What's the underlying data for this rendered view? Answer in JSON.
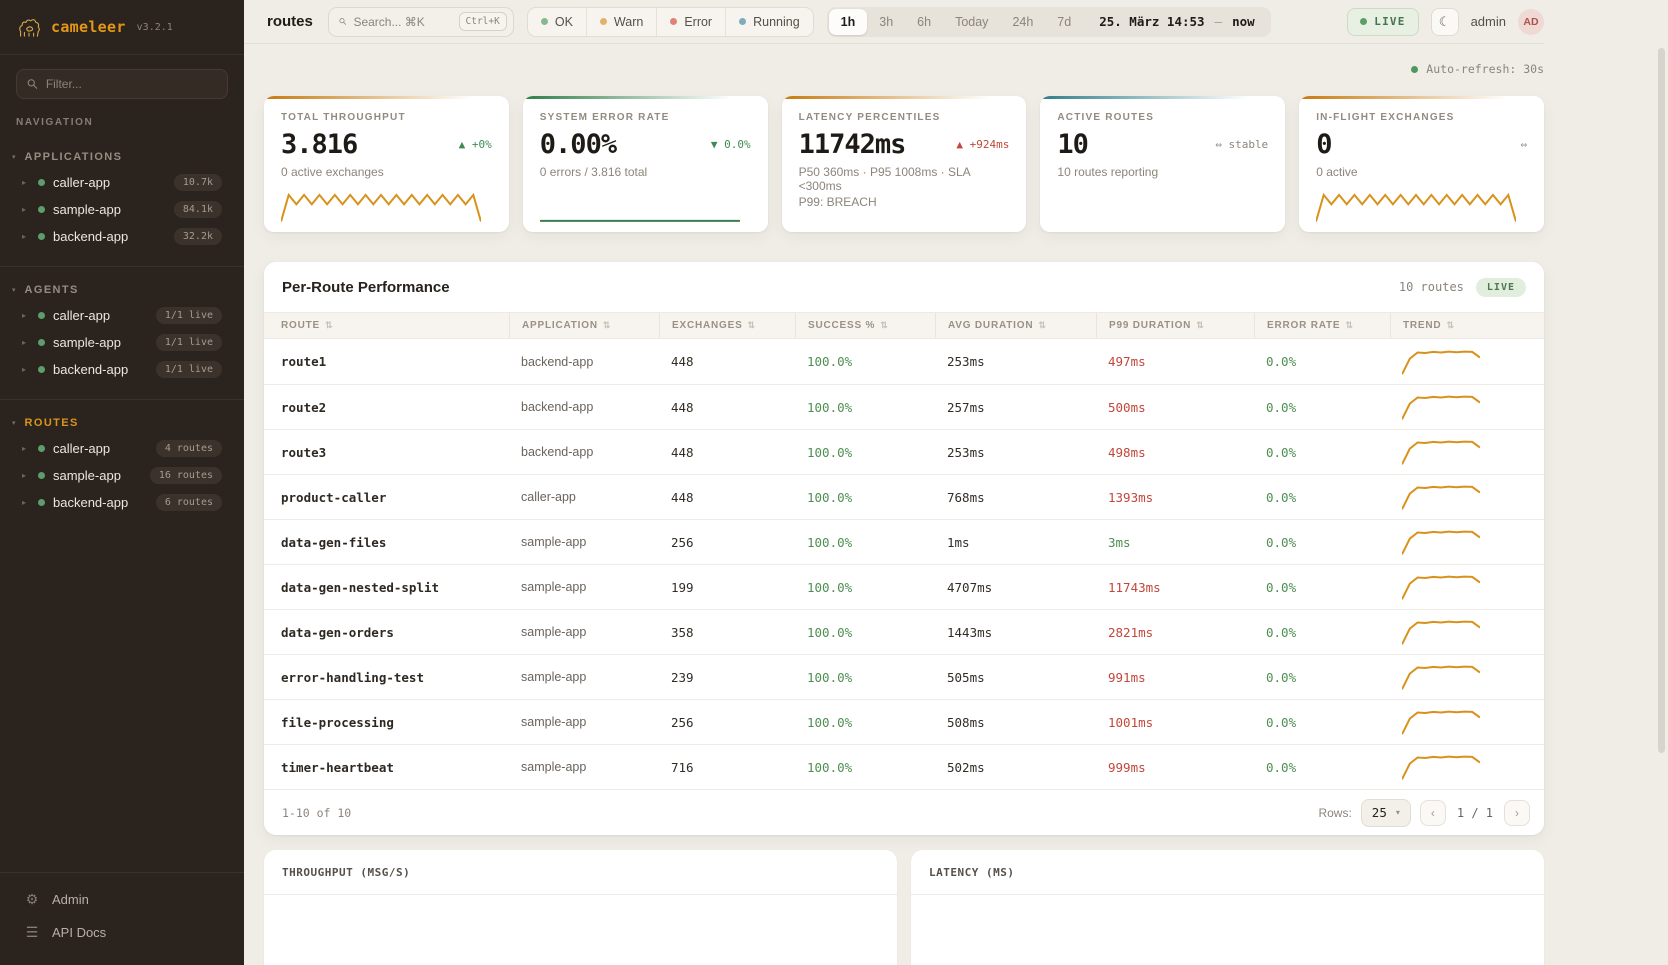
{
  "app": {
    "name": "cameleer",
    "version": "v3.2.1"
  },
  "sidebar": {
    "filter_placeholder": "Filter...",
    "nav_label": "NAVIGATION",
    "caret_collapsed": "▸",
    "caret_expanded": "▾",
    "sections": [
      {
        "label": "APPLICATIONS",
        "items": [
          {
            "label": "caller-app",
            "badge": "10.7k"
          },
          {
            "label": "sample-app",
            "badge": "84.1k"
          },
          {
            "label": "backend-app",
            "badge": "32.2k"
          }
        ]
      },
      {
        "label": "AGENTS",
        "items": [
          {
            "label": "caller-app",
            "badge": "1/1 live"
          },
          {
            "label": "sample-app",
            "badge": "1/1 live"
          },
          {
            "label": "backend-app",
            "badge": "1/1 live"
          }
        ]
      },
      {
        "label": "ROUTES",
        "items": [
          {
            "label": "caller-app",
            "badge": "4 routes"
          },
          {
            "label": "sample-app",
            "badge": "16 routes"
          },
          {
            "label": "backend-app",
            "badge": "6 routes"
          }
        ]
      }
    ],
    "admin_label": "Admin",
    "api_docs_label": "API Docs"
  },
  "header": {
    "page_title": "routes",
    "search": {
      "placeholder": "Search... ⌘K",
      "shortcut": "Ctrl+K"
    },
    "status_filters": [
      {
        "label": "OK",
        "color": "#86b98f"
      },
      {
        "label": "Warn",
        "color": "#dfb469"
      },
      {
        "label": "Error",
        "color": "#dd8378"
      },
      {
        "label": "Running",
        "color": "#81aaba"
      }
    ],
    "time_ranges": [
      "1h",
      "3h",
      "6h",
      "Today",
      "24h",
      "7d"
    ],
    "active_range": "1h",
    "range_from": "25. März 14:53",
    "range_sep": "—",
    "range_to": "now",
    "live_label": "LIVE",
    "user_name": "admin",
    "avatar_initials": "AD"
  },
  "overview": {
    "auto_refresh": "Auto-refresh: 30s",
    "kpis": [
      {
        "label": "TOTAL THROUGHPUT",
        "value": "3.816",
        "delta": "▲ +0%",
        "tone": "up",
        "sub": "0 active exchanges",
        "accent": "#c7790d",
        "spark_color": "#d8921c",
        "spark": [
          4,
          78,
          52,
          78,
          52,
          78,
          52,
          78,
          52,
          78,
          52,
          78,
          52,
          78,
          52,
          78,
          52,
          78,
          52,
          78,
          52,
          78,
          52,
          78,
          52,
          78,
          4
        ]
      },
      {
        "label": "SYSTEM ERROR RATE",
        "value": "0.00%",
        "delta": "▼ 0.0%",
        "tone": "up",
        "sub": "0 errors / 3.816 total",
        "accent": "#2e7d46",
        "spark_color": "#3f7d4c",
        "spark": [
          6,
          6
        ]
      },
      {
        "label": "LATENCY PERCENTILES",
        "value": "11742ms",
        "delta": "▲ +924ms",
        "tone": "down",
        "sub": "P50 360ms · P95 1008ms · SLA <300ms",
        "sub2": "P99: BREACH",
        "accent": "#c7790d"
      },
      {
        "label": "ACTIVE ROUTES",
        "value": "10",
        "delta": "⇔ stable",
        "tone": "flat",
        "sub": "10 routes reporting",
        "accent": "#2e7d8a"
      },
      {
        "label": "IN-FLIGHT EXCHANGES",
        "value": "0",
        "delta": "⇔",
        "tone": "flat",
        "sub": "0 active",
        "accent": "#c7790d",
        "spark_color": "#d8921c",
        "spark": [
          4,
          78,
          52,
          78,
          52,
          78,
          52,
          78,
          52,
          78,
          52,
          78,
          52,
          78,
          52,
          78,
          52,
          78,
          52,
          78,
          52,
          78,
          52,
          78,
          52,
          78,
          4
        ]
      }
    ]
  },
  "table": {
    "title": "Per-Route Performance",
    "routes_count": "10 routes",
    "live_label": "LIVE",
    "sort_icon": "⇅",
    "columns": [
      "ROUTE",
      "APPLICATION",
      "EXCHANGES",
      "SUCCESS %",
      "AVG DURATION",
      "P99 DURATION",
      "ERROR RATE",
      "TREND"
    ],
    "trend_color": "#d8921c",
    "trend": [
      6,
      62,
      84,
      82,
      86,
      84,
      87,
      85,
      87,
      86,
      66
    ],
    "rows": [
      {
        "route": "route1",
        "app": "backend-app",
        "exchanges": "448",
        "success": "100.0%",
        "avg": "253ms",
        "p99": "497ms",
        "p99_tone": "bad",
        "error": "0.0%"
      },
      {
        "route": "route2",
        "app": "backend-app",
        "exchanges": "448",
        "success": "100.0%",
        "avg": "257ms",
        "p99": "500ms",
        "p99_tone": "bad",
        "error": "0.0%"
      },
      {
        "route": "route3",
        "app": "backend-app",
        "exchanges": "448",
        "success": "100.0%",
        "avg": "253ms",
        "p99": "498ms",
        "p99_tone": "bad",
        "error": "0.0%"
      },
      {
        "route": "product-caller",
        "app": "caller-app",
        "exchanges": "448",
        "success": "100.0%",
        "avg": "768ms",
        "p99": "1393ms",
        "p99_tone": "bad",
        "error": "0.0%"
      },
      {
        "route": "data-gen-files",
        "app": "sample-app",
        "exchanges": "256",
        "success": "100.0%",
        "avg": "1ms",
        "p99": "3ms",
        "p99_tone": "ok",
        "error": "0.0%"
      },
      {
        "route": "data-gen-nested-split",
        "app": "sample-app",
        "exchanges": "199",
        "success": "100.0%",
        "avg": "4707ms",
        "p99": "11743ms",
        "p99_tone": "bad",
        "error": "0.0%"
      },
      {
        "route": "data-gen-orders",
        "app": "sample-app",
        "exchanges": "358",
        "success": "100.0%",
        "avg": "1443ms",
        "p99": "2821ms",
        "p99_tone": "bad",
        "error": "0.0%"
      },
      {
        "route": "error-handling-test",
        "app": "sample-app",
        "exchanges": "239",
        "success": "100.0%",
        "avg": "505ms",
        "p99": "991ms",
        "p99_tone": "bad",
        "error": "0.0%"
      },
      {
        "route": "file-processing",
        "app": "sample-app",
        "exchanges": "256",
        "success": "100.0%",
        "avg": "508ms",
        "p99": "1001ms",
        "p99_tone": "bad",
        "error": "0.0%"
      },
      {
        "route": "timer-heartbeat",
        "app": "sample-app",
        "exchanges": "716",
        "success": "100.0%",
        "avg": "502ms",
        "p99": "999ms",
        "p99_tone": "bad",
        "error": "0.0%"
      }
    ],
    "footer": {
      "range_label": "1-10 of 10",
      "rows_label": "Rows:",
      "rows_value": "25",
      "rows_caret": "▾",
      "prev": "‹",
      "page_label": "1 / 1",
      "next": "›"
    }
  },
  "bottom_charts": [
    {
      "title": "THROUGHPUT (MSG/S)"
    },
    {
      "title": "LATENCY (MS)"
    }
  ]
}
